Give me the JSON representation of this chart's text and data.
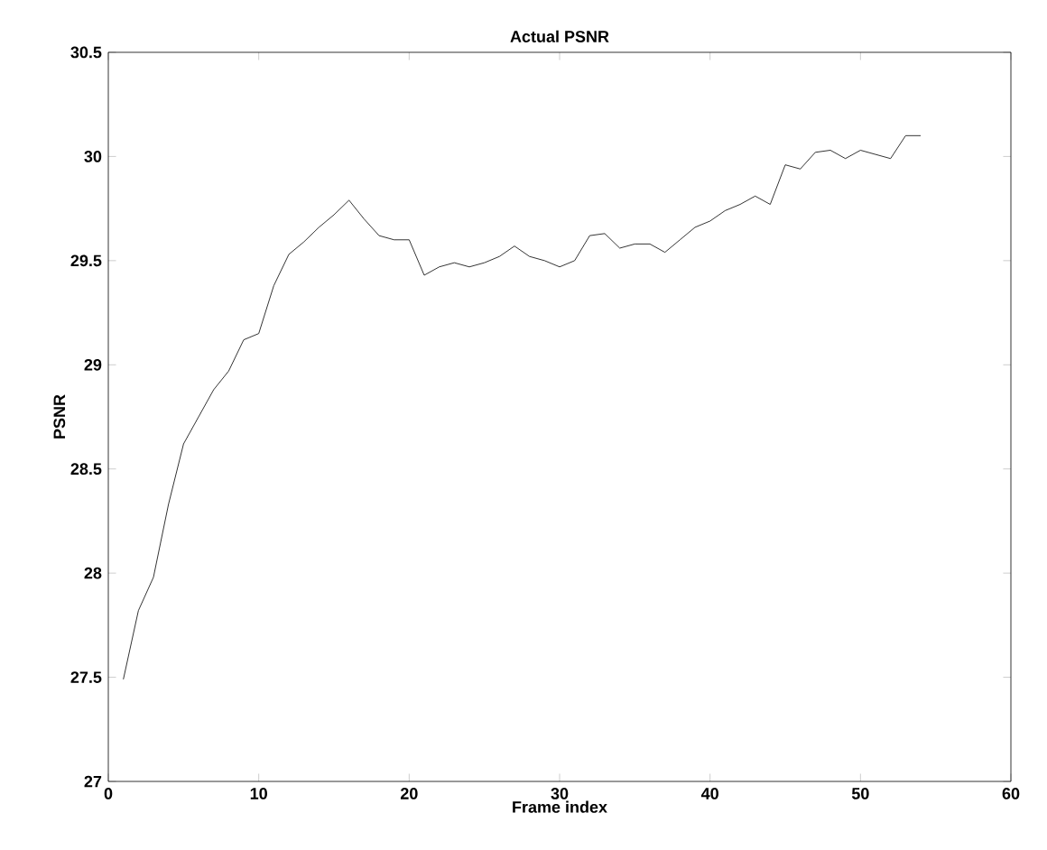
{
  "chart_data": {
    "type": "line",
    "title": "Actual PSNR",
    "xlabel": "Frame index",
    "ylabel": "PSNR",
    "x": [
      1,
      2,
      3,
      4,
      5,
      6,
      7,
      8,
      9,
      10,
      11,
      12,
      13,
      14,
      15,
      16,
      17,
      18,
      19,
      20,
      21,
      22,
      23,
      24,
      25,
      26,
      27,
      28,
      29,
      30,
      31,
      32,
      33,
      34,
      35,
      36,
      37,
      38,
      39,
      40,
      41,
      42,
      43,
      44,
      45,
      46,
      47,
      48,
      49,
      50,
      51,
      52,
      53,
      54
    ],
    "series": [
      {
        "color": "#000000",
        "values": [
          27.49,
          27.82,
          27.98,
          28.33,
          28.62,
          28.75,
          28.88,
          28.97,
          29.12,
          29.15,
          29.38,
          29.53,
          29.59,
          29.66,
          29.72,
          29.79,
          29.7,
          29.62,
          29.6,
          29.6,
          29.43,
          29.47,
          29.49,
          29.47,
          29.49,
          29.52,
          29.57,
          29.52,
          29.5,
          29.47,
          29.5,
          29.62,
          29.63,
          29.56,
          29.58,
          29.58,
          29.54,
          29.6,
          29.66,
          29.69,
          29.74,
          29.77,
          29.81,
          29.77,
          29.96,
          29.94,
          30.02,
          30.03,
          29.99,
          30.03,
          30.01,
          29.99,
          30.1,
          30.1
        ]
      }
    ],
    "xlim": [
      0,
      60
    ],
    "ylim": [
      27,
      30.5
    ],
    "xticks": [
      0,
      10,
      20,
      30,
      40,
      50,
      60
    ],
    "yticks": [
      27,
      27.5,
      28,
      28.5,
      29,
      29.5,
      30,
      30.5
    ],
    "marker": "none",
    "line_style": "solid"
  }
}
